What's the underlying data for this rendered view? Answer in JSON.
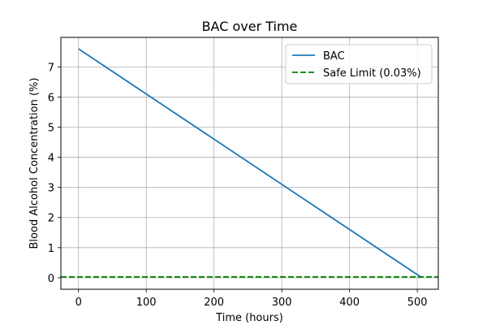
{
  "chart_data": {
    "type": "line",
    "title": "BAC over Time",
    "xlabel": "Time (hours)",
    "ylabel": "Blood Alcohol Concentration (%)",
    "xlim": [
      -26,
      531
    ],
    "ylim": [
      -0.38,
      7.98
    ],
    "x_ticks": [
      0,
      100,
      200,
      300,
      400,
      500
    ],
    "y_ticks": [
      0,
      1,
      2,
      3,
      4,
      5,
      6,
      7
    ],
    "grid": true,
    "legend_position": "top-right",
    "series": [
      {
        "name": "BAC",
        "color": "#1f77b4",
        "style": "solid",
        "x": [
          0,
          505
        ],
        "y": [
          7.6,
          0.03
        ]
      },
      {
        "name": "Safe Limit (0.03%)",
        "color": "#008000",
        "style": "dashed",
        "hline": 0.03
      }
    ]
  }
}
